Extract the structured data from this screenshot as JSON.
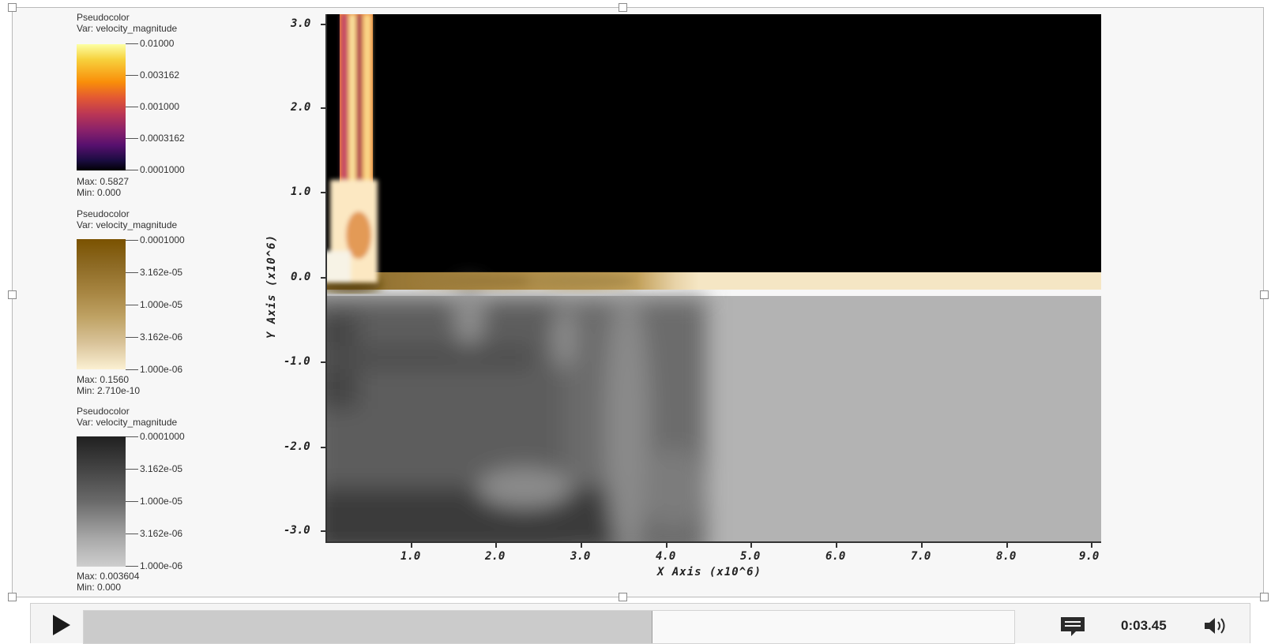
{
  "legends": [
    {
      "title": "Pseudocolor",
      "var": "Var: velocity_magnitude",
      "ticks": [
        "0.01000",
        "0.003162",
        "0.001000",
        "0.0003162",
        "0.0001000"
      ],
      "max": "Max: 0.5827",
      "min": "Min: 0.000",
      "colormap": "inferno",
      "colors": [
        "#fcffa4",
        "#f98e09",
        "#bc3754",
        "#57106e",
        "#000004"
      ]
    },
    {
      "title": "Pseudocolor",
      "var": "Var: velocity_magnitude",
      "ticks": [
        "0.0001000",
        "3.162e-05",
        "1.000e-05",
        "3.162e-06",
        "1.000e-06"
      ],
      "max": "Max: 0.1560",
      "min": "Min: 2.710e-10",
      "colormap": "orangehot",
      "colors": [
        "#7a5200",
        "#a68440",
        "#d2b888",
        "#fbf0d2"
      ]
    },
    {
      "title": "Pseudocolor",
      "var": "Var: velocity_magnitude",
      "ticks": [
        "0.0001000",
        "3.162e-05",
        "1.000e-05",
        "3.162e-06",
        "1.000e-06"
      ],
      "max": "Max: 0.003604",
      "min": "Min: 0.000",
      "colormap": "gray",
      "colors": [
        "#202020",
        "#6a6a6a",
        "#a8a8a8",
        "#cecece"
      ]
    }
  ],
  "plot": {
    "x_axis_title": "X Axis (x10^6)",
    "y_axis_title": "Y Axis (x10^6)",
    "x_ticks": [
      "1.0",
      "2.0",
      "3.0",
      "4.0",
      "5.0",
      "6.0",
      "7.0",
      "8.0",
      "9.0"
    ],
    "y_ticks": [
      "3.0",
      "2.0",
      "1.0",
      "0.0",
      "-1.0",
      "-2.0",
      "-3.0"
    ],
    "x_range": [
      0,
      9.1
    ],
    "y_range": [
      -3.1,
      3.1
    ],
    "colors": {
      "upper_background": "#000000",
      "band": "#f5e6c4",
      "lower_background": "#b3b3b3"
    }
  },
  "player": {
    "time": "0:03.45",
    "progress_fraction": 0.61,
    "play_icon": "play-icon",
    "captions_icon": "captions-icon",
    "volume_icon": "volume-icon"
  }
}
